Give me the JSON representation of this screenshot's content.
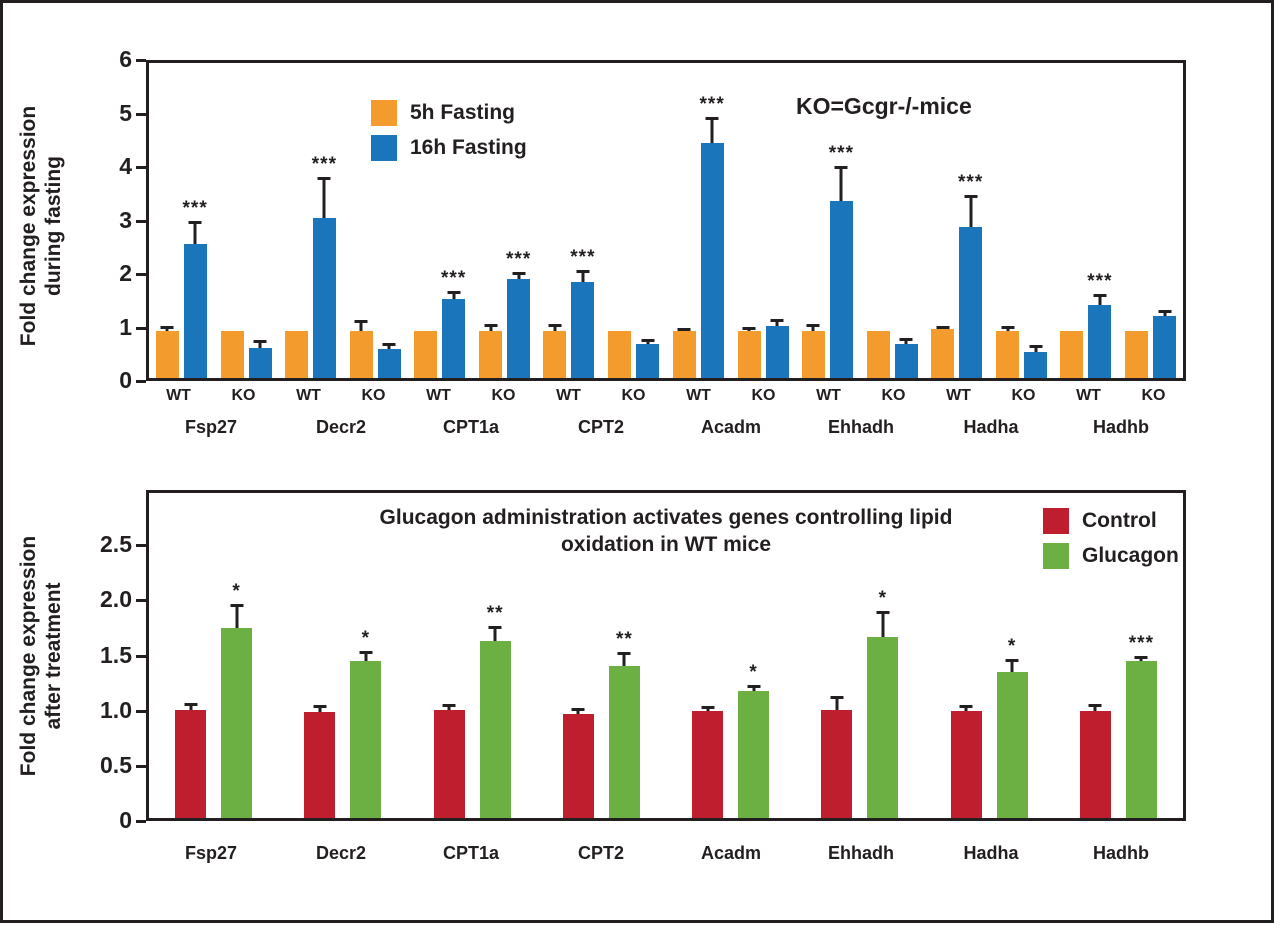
{
  "figure": {
    "background": "#ffffff",
    "border_color": "#231F20",
    "text_color": "#231F20"
  },
  "chart_data": [
    {
      "type": "bar",
      "title": "",
      "annotation": "KO=Gcgr-/-mice",
      "ylabel": "Fold change expression\nduring fasting",
      "ylim": [
        0,
        6
      ],
      "yticks": [
        "0",
        "1",
        "2",
        "3",
        "4",
        "5",
        "6"
      ],
      "grid": false,
      "legend_position": "top-left-inside",
      "legend": [
        {
          "label": "5h Fasting",
          "color": "#F49B2E"
        },
        {
          "label": "16h Fasting",
          "color": "#1B75BB"
        }
      ],
      "group_sublabels": [
        "WT",
        "KO"
      ],
      "categories": [
        "Fsp27",
        "Decr2",
        "CPT1a",
        "CPT2",
        "Acadm",
        "Ehhadh",
        "Hadha",
        "Hadhb"
      ],
      "series": [
        {
          "name": "WT 5h Fasting",
          "color": "#F49B2E",
          "values": [
            0.9,
            0.9,
            0.9,
            0.9,
            0.9,
            0.9,
            0.93,
            0.9
          ],
          "errors": [
            0.1,
            0.0,
            0.0,
            0.12,
            0.06,
            0.13,
            0.07,
            0.0
          ],
          "sig": [
            "",
            "",
            "",
            "",
            "",
            "",
            "",
            ""
          ]
        },
        {
          "name": "WT 16h Fasting",
          "color": "#1B75BB",
          "values": [
            2.56,
            3.05,
            1.5,
            1.83,
            4.47,
            3.38,
            2.88,
            1.4
          ],
          "errors": [
            0.43,
            0.78,
            0.15,
            0.22,
            0.5,
            0.65,
            0.6,
            0.2
          ],
          "sig": [
            "***",
            "***",
            "***",
            "***",
            "***",
            "***",
            "***",
            "***"
          ]
        },
        {
          "name": "KO 5h Fasting",
          "color": "#F49B2E",
          "values": [
            0.9,
            0.9,
            0.9,
            0.9,
            0.9,
            0.9,
            0.9,
            0.9
          ],
          "errors": [
            0.0,
            0.2,
            0.12,
            0.0,
            0.08,
            0.0,
            0.1,
            0.0
          ],
          "sig": [
            "",
            "",
            "",
            "",
            "",
            "",
            "",
            ""
          ]
        },
        {
          "name": "KO 16h Fasting",
          "color": "#1B75BB",
          "values": [
            0.58,
            0.55,
            1.89,
            0.65,
            0.99,
            0.65,
            0.49,
            1.18
          ],
          "errors": [
            0.14,
            0.12,
            0.13,
            0.1,
            0.13,
            0.12,
            0.13,
            0.12
          ],
          "sig": [
            "",
            "",
            "***",
            "",
            "",
            "",
            "",
            ""
          ]
        }
      ]
    },
    {
      "type": "bar",
      "title": "Glucagon administration activates genes controlling lipid\noxidation in WT mice",
      "annotation": "",
      "ylabel": "Fold change expression\nafter treatment",
      "ylim": [
        0,
        3
      ],
      "yticks": [
        "0",
        "0.5",
        "1.0",
        "1.5",
        "2.0",
        "2.5"
      ],
      "grid": false,
      "legend_position": "top-right-inside",
      "legend": [
        {
          "label": "Control",
          "color": "#BE1E2D"
        },
        {
          "label": "Glucagon",
          "color": "#6CB044"
        }
      ],
      "group_sublabels": [],
      "categories": [
        "Fsp27",
        "Decr2",
        "CPT1a",
        "CPT2",
        "Acadm",
        "Ehhadh",
        "Hadha",
        "Hadhb"
      ],
      "series": [
        {
          "name": "Control",
          "color": "#BE1E2D",
          "values": [
            1.0,
            0.98,
            1.0,
            0.96,
            0.99,
            1.0,
            0.99,
            0.99
          ],
          "errors": [
            0.06,
            0.06,
            0.05,
            0.06,
            0.04,
            0.13,
            0.05,
            0.06
          ],
          "sig": [
            "",
            "",
            "",
            "",
            "",
            "",
            "",
            ""
          ]
        },
        {
          "name": "Glucagon",
          "color": "#6CB044",
          "values": [
            1.75,
            1.45,
            1.63,
            1.4,
            1.17,
            1.67,
            1.35,
            1.45
          ],
          "errors": [
            0.23,
            0.09,
            0.14,
            0.13,
            0.06,
            0.24,
            0.12,
            0.05
          ],
          "sig": [
            "*",
            "*",
            "**",
            "**",
            "*",
            "*",
            "*",
            "***"
          ]
        }
      ]
    }
  ]
}
